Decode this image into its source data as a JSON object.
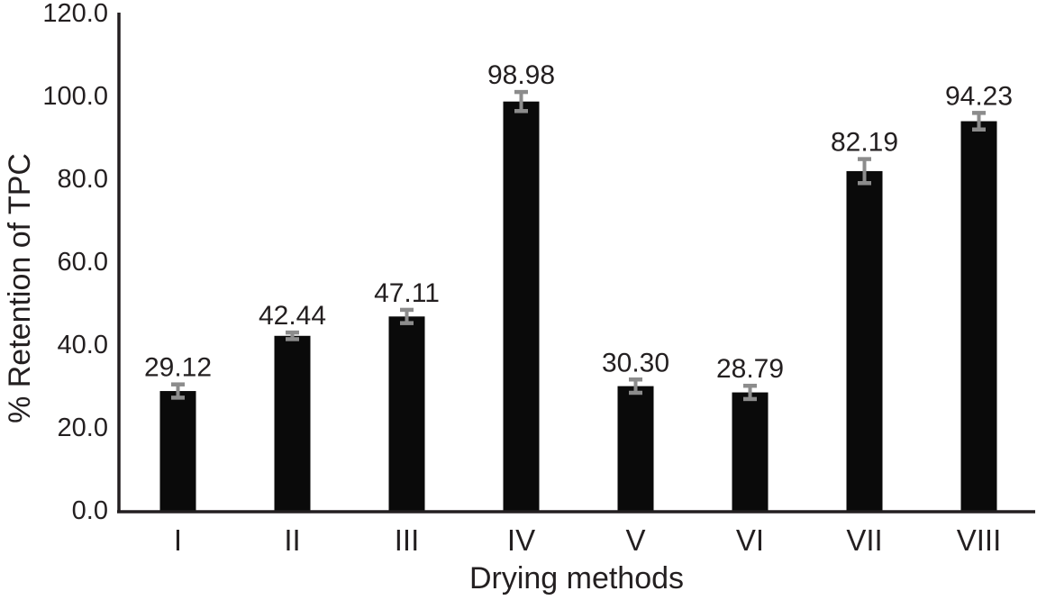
{
  "chart_data": {
    "type": "bar",
    "title": "",
    "categories": [
      "I",
      "II",
      "III",
      "IV",
      "V",
      "VI",
      "VII",
      "VIII"
    ],
    "values": [
      29.12,
      42.44,
      47.11,
      98.98,
      30.3,
      28.79,
      82.19,
      94.23
    ],
    "value_labels": [
      "29.12",
      "42.44",
      "47.11",
      "98.98",
      "30.30",
      "28.79",
      "82.19",
      "94.23"
    ],
    "error_bars": [
      1.6,
      0.8,
      1.6,
      2.3,
      1.6,
      1.6,
      2.9,
      2.0
    ],
    "xlabel": "Drying methods",
    "ylabel": "% Retention of TPC",
    "ylim": [
      0,
      120
    ],
    "ytick_interval": 20,
    "ytick_labels": [
      "0.0",
      "20.0",
      "40.0",
      "60.0",
      "80.0",
      "100.0",
      "120.0"
    ],
    "grid": false,
    "legend_position": "none",
    "bar_color": "#0a0a0a",
    "error_bar_color": "#8c8c8c",
    "axis_color": "#231f20",
    "text_color": "#231f20",
    "background_color": "#ffffff"
  }
}
